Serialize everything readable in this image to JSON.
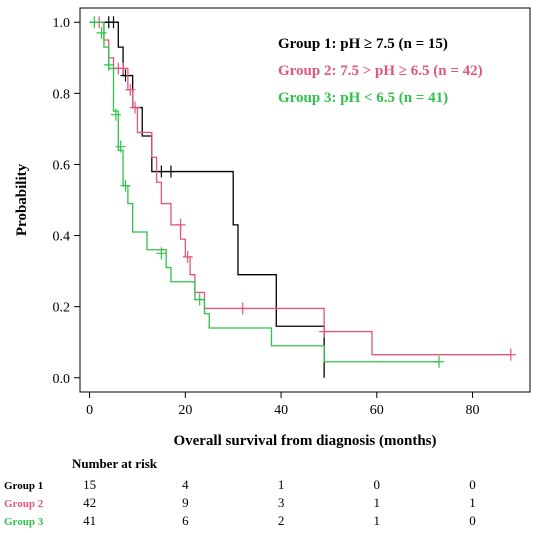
{
  "chart_data": {
    "type": "line",
    "title": "",
    "xlabel": "Overall survival from diagnosis (months)",
    "ylabel": "Probability",
    "xlim": [
      -2,
      92
    ],
    "ylim": [
      -0.04,
      1.04
    ],
    "xticks": [
      0,
      20,
      40,
      60,
      80
    ],
    "yticks": [
      0.0,
      0.2,
      0.4,
      0.6,
      0.8,
      1.0
    ],
    "xtick_labels": [
      "0",
      "20",
      "40",
      "60",
      "80"
    ],
    "ytick_labels": [
      "0.0",
      "0.2",
      "0.4",
      "0.6",
      "0.8",
      "1.0"
    ],
    "grid": false,
    "legend_position": "top-right",
    "series": [
      {
        "name": "Group 1: pH ≥ 7.5 (n = 15)",
        "color": "#000000",
        "steps": [
          [
            0,
            1.0
          ],
          [
            6,
            0.93
          ],
          [
            7,
            0.85
          ],
          [
            9,
            0.76
          ],
          [
            11,
            0.68
          ],
          [
            13,
            0.58
          ],
          [
            30,
            0.43
          ],
          [
            31,
            0.29
          ],
          [
            39,
            0.145
          ],
          [
            49,
            0.0
          ]
        ],
        "end_x": 49,
        "censored": [
          [
            4,
            1.0
          ],
          [
            5,
            1.0
          ],
          [
            7.5,
            0.85
          ],
          [
            15,
            0.58
          ],
          [
            17,
            0.58
          ]
        ]
      },
      {
        "name": "Group 2: 7.5 > pH ≥ 6.5 (n = 42)",
        "color": "#e05878",
        "steps": [
          [
            0,
            1.0
          ],
          [
            3,
            0.95
          ],
          [
            4,
            0.9
          ],
          [
            5,
            0.87
          ],
          [
            8,
            0.81
          ],
          [
            9,
            0.76
          ],
          [
            10,
            0.69
          ],
          [
            13,
            0.62
          ],
          [
            14,
            0.55
          ],
          [
            15,
            0.49
          ],
          [
            17,
            0.43
          ],
          [
            19,
            0.39
          ],
          [
            20,
            0.34
          ],
          [
            21,
            0.29
          ],
          [
            22,
            0.24
          ],
          [
            24,
            0.195
          ],
          [
            49,
            0.13
          ],
          [
            59,
            0.065
          ]
        ],
        "end_x": 88,
        "censored": [
          [
            2,
            1.0
          ],
          [
            6,
            0.87
          ],
          [
            7,
            0.87
          ],
          [
            8.5,
            0.81
          ],
          [
            9.5,
            0.76
          ],
          [
            19,
            0.43
          ],
          [
            20.5,
            0.34
          ],
          [
            32,
            0.195
          ],
          [
            49,
            0.13
          ],
          [
            88,
            0.065
          ]
        ]
      },
      {
        "name": "Group 3: pH < 6.5 (n = 41)",
        "color": "#2ec24a",
        "steps": [
          [
            0,
            1.0
          ],
          [
            3,
            0.93
          ],
          [
            4,
            0.87
          ],
          [
            5,
            0.75
          ],
          [
            6,
            0.64
          ],
          [
            7,
            0.54
          ],
          [
            8,
            0.49
          ],
          [
            9,
            0.41
          ],
          [
            12,
            0.36
          ],
          [
            16,
            0.31
          ],
          [
            17,
            0.27
          ],
          [
            22,
            0.22
          ],
          [
            24,
            0.18
          ],
          [
            25,
            0.14
          ],
          [
            38,
            0.09
          ],
          [
            49,
            0.045
          ]
        ],
        "end_x": 73,
        "censored": [
          [
            1,
            1.0
          ],
          [
            2.5,
            0.97
          ],
          [
            4,
            0.88
          ],
          [
            5.5,
            0.74
          ],
          [
            6.5,
            0.65
          ],
          [
            7.5,
            0.54
          ],
          [
            15,
            0.35
          ],
          [
            23,
            0.22
          ],
          [
            73,
            0.045
          ]
        ]
      }
    ],
    "number_at_risk": {
      "header": "Number at risk",
      "times": [
        0,
        20,
        40,
        60,
        80
      ],
      "rows": [
        {
          "label": "Group 1",
          "color": "#000000",
          "values": [
            "15",
            "4",
            "1",
            "0",
            "0"
          ]
        },
        {
          "label": "Group 2",
          "color": "#e05878",
          "values": [
            "42",
            "9",
            "3",
            "1",
            "1"
          ]
        },
        {
          "label": "Group 3",
          "color": "#2ec24a",
          "values": [
            "41",
            "6",
            "2",
            "1",
            "0"
          ]
        }
      ]
    }
  }
}
